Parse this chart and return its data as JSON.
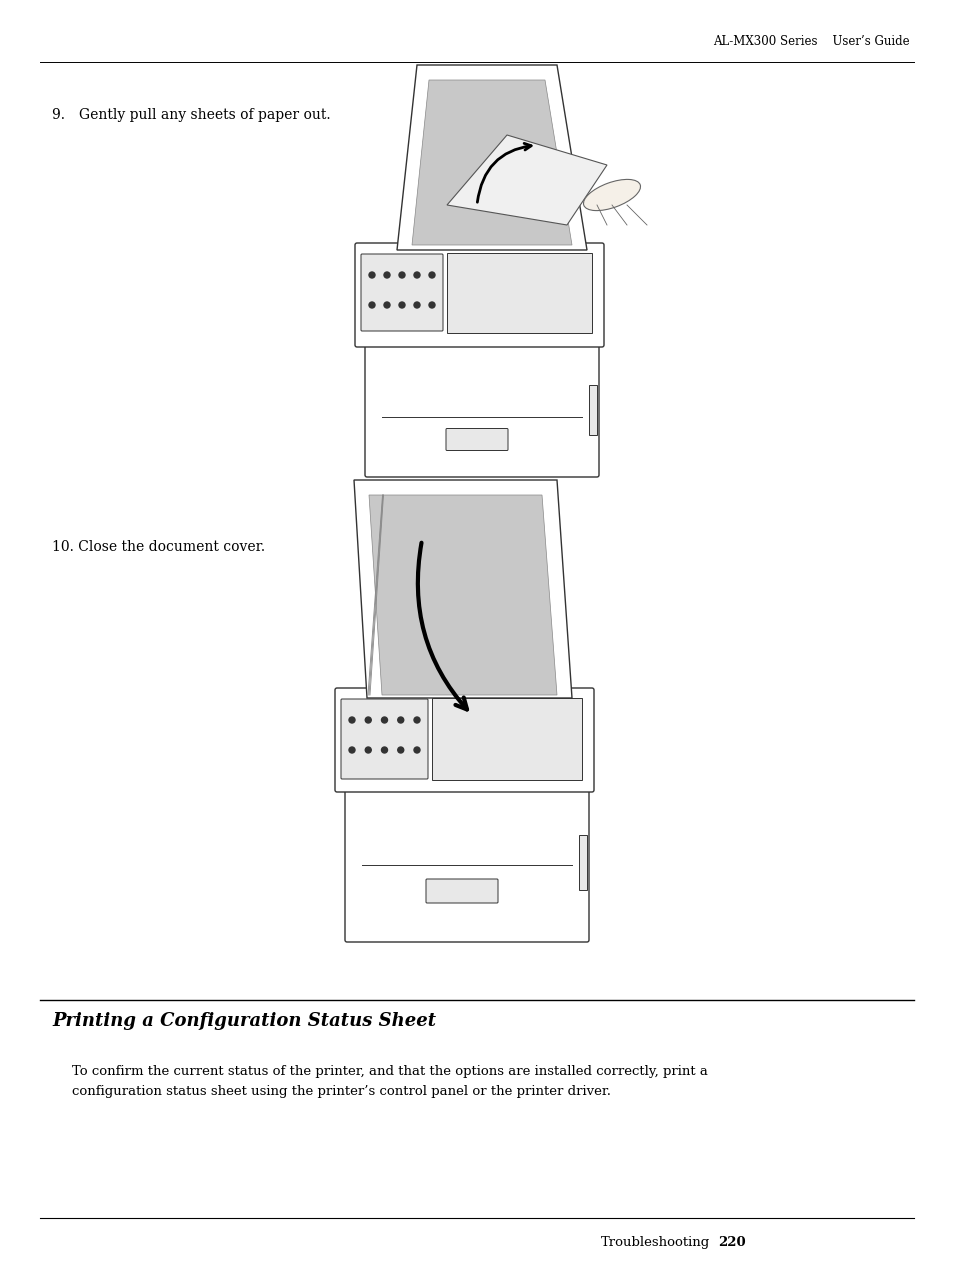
{
  "bg_color": "#ffffff",
  "header_text": "AL-MX300 Series    User’s Guide",
  "footer_text": "Troubleshooting",
  "footer_page": "220",
  "step9_text": "9.  Gently pull any sheets of paper out.",
  "step10_text": "10. Close the document cover.",
  "section_title": "Printing a Configuration Status Sheet",
  "section_body_line1": "To confirm the current status of the printer, and that the options are installed correctly, print a",
  "section_body_line2": "configuration status sheet using the printer’s control panel or the printer driver.",
  "font_size_header": 8.5,
  "font_size_step": 10,
  "font_size_section_title": 13,
  "font_size_body": 9.5,
  "font_size_footer": 9.5
}
